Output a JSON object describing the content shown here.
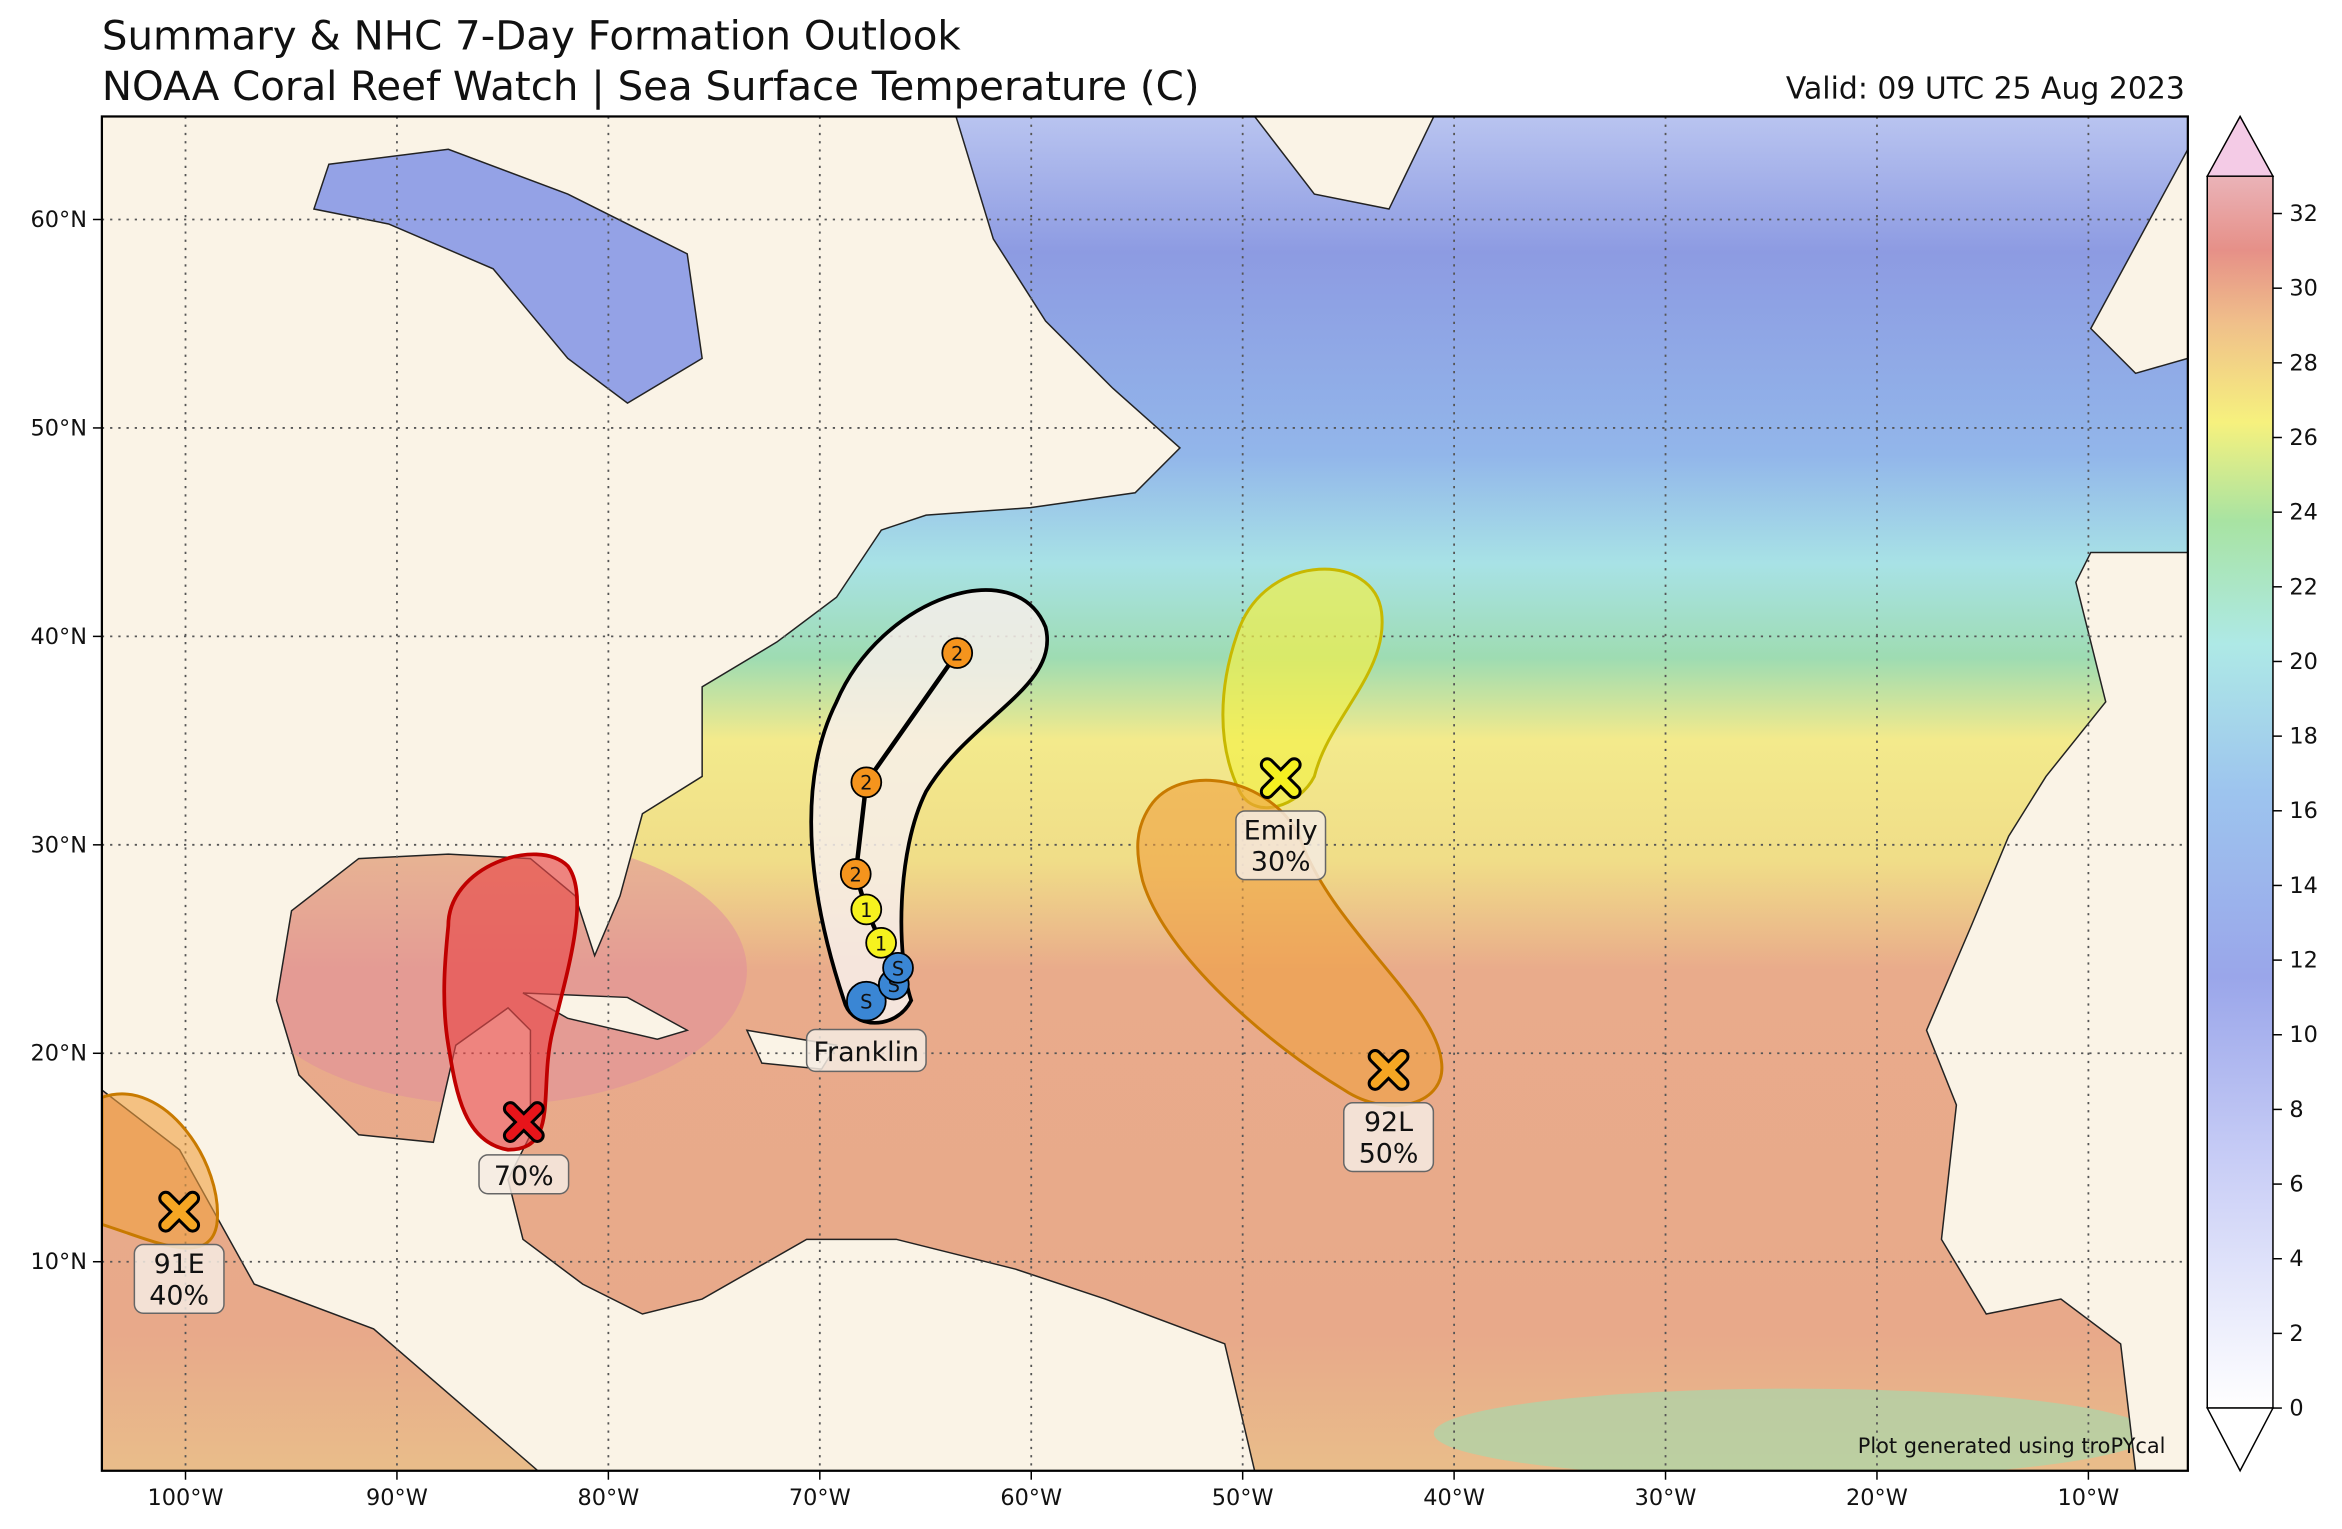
{
  "header": {
    "title": "Summary & NHC 7-Day Formation Outlook",
    "subtitle": "NOAA Coral Reef Watch | Sea Surface Temperature (C)",
    "valid": "Valid: 09 UTC 25 Aug 2023"
  },
  "map": {
    "lon_ticks": [
      {
        "value": -100,
        "label": "100°W"
      },
      {
        "value": -90,
        "label": "90°W"
      },
      {
        "value": -80,
        "label": "80°W"
      },
      {
        "value": -70,
        "label": "70°W"
      },
      {
        "value": -60,
        "label": "60°W"
      },
      {
        "value": -50,
        "label": "50°W"
      },
      {
        "value": -40,
        "label": "40°W"
      },
      {
        "value": -30,
        "label": "30°W"
      },
      {
        "value": -20,
        "label": "20°W"
      },
      {
        "value": -10,
        "label": "10°W"
      }
    ],
    "lat_ticks": [
      {
        "value": 10,
        "label": "10°N"
      },
      {
        "value": 20,
        "label": "20°N"
      },
      {
        "value": 30,
        "label": "30°N"
      },
      {
        "value": 40,
        "label": "40°N"
      },
      {
        "value": 50,
        "label": "50°N"
      },
      {
        "value": 60,
        "label": "60°N"
      }
    ]
  },
  "colorbar": {
    "ticks": [
      0,
      2,
      4,
      6,
      8,
      10,
      12,
      14,
      16,
      18,
      20,
      22,
      24,
      26,
      28,
      30,
      32
    ]
  },
  "storms": [
    {
      "name": "Franklin",
      "track": [
        {
          "lon": -67.8,
          "lat": 22.5,
          "label": "S"
        },
        {
          "lon": -66.5,
          "lat": 23.3,
          "label": "S"
        },
        {
          "lon": -66.3,
          "lat": 24.1,
          "label": "S"
        },
        {
          "lon": -67.1,
          "lat": 25.3,
          "label": "1"
        },
        {
          "lon": -67.8,
          "lat": 26.9,
          "label": "1"
        },
        {
          "lon": -68.3,
          "lat": 28.6,
          "label": "2"
        },
        {
          "lon": -67.8,
          "lat": 33.0,
          "label": "2"
        },
        {
          "lon": -63.5,
          "lat": 39.2,
          "label": "2"
        }
      ]
    }
  ],
  "outlooks": [
    {
      "name": "Emily",
      "chance": "30%",
      "lon": -48.2,
      "lat": 33.2,
      "color": "#f5f020"
    },
    {
      "name": "92L",
      "chance": "50%",
      "lon": -43.1,
      "lat": 19.2,
      "color": "#f5a623"
    },
    {
      "chance": "70%",
      "lon": -84.0,
      "lat": 16.7,
      "color": "#e8141a"
    },
    {
      "name": "91E",
      "chance": "40%",
      "lon": -100.3,
      "lat": 12.4,
      "color": "#f5a623"
    }
  ],
  "credit": "Plot generated using troPYcal"
}
